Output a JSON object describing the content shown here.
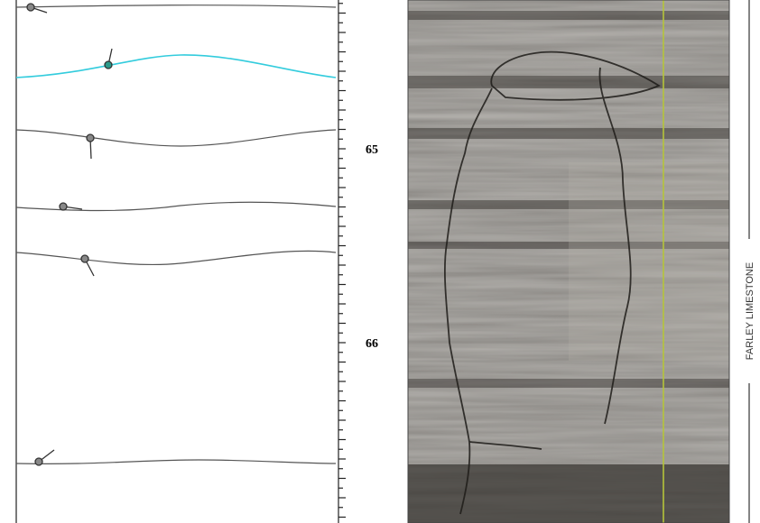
{
  "depth_track": {
    "labels": [
      "65",
      "66"
    ]
  },
  "formation": {
    "name": "FARLEY LIMESTONE"
  }
}
